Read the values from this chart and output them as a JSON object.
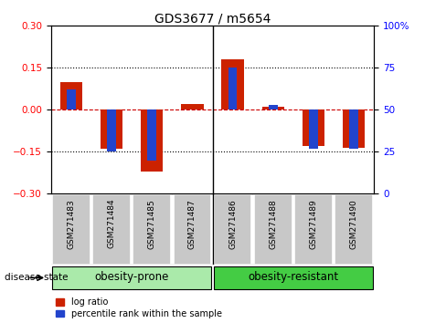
{
  "title": "GDS3677 / m5654",
  "samples": [
    "GSM271483",
    "GSM271484",
    "GSM271485",
    "GSM271487",
    "GSM271486",
    "GSM271488",
    "GSM271489",
    "GSM271490"
  ],
  "log_ratio": [
    0.1,
    -0.14,
    -0.22,
    0.02,
    0.18,
    0.01,
    -0.13,
    -0.135
  ],
  "percentile_rank": [
    62,
    25,
    20,
    50,
    75,
    53,
    27,
    27
  ],
  "groups": [
    {
      "label": "obesity-prone",
      "indices": [
        0,
        1,
        2,
        3
      ],
      "color": "#AAEAAA"
    },
    {
      "label": "obesity-resistant",
      "indices": [
        4,
        5,
        6,
        7
      ],
      "color": "#44CC44"
    }
  ],
  "ylim": [
    -0.3,
    0.3
  ],
  "yticks": [
    -0.3,
    -0.15,
    0,
    0.15,
    0.3
  ],
  "right_ylim": [
    0,
    100
  ],
  "right_yticks": [
    0,
    25,
    50,
    75,
    100
  ],
  "bar_color_red": "#CC2200",
  "bar_color_blue": "#2244CC",
  "hline_color": "#CC0000",
  "background_color": "#FFFFFF",
  "disease_state_label": "disease state",
  "legend_red_label": "log ratio",
  "legend_blue_label": "percentile rank within the sample",
  "title_fontsize": 10,
  "tick_fontsize": 7.5,
  "sample_fontsize": 6.5,
  "group_fontsize": 8.5,
  "legend_fontsize": 7,
  "label_fontsize": 7.5
}
